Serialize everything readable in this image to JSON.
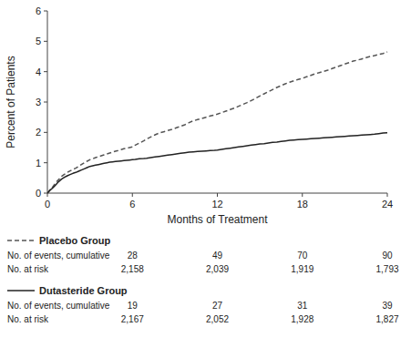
{
  "chart_data": {
    "type": "line",
    "xlabel": "Months of Treatment",
    "ylabel": "Percent of Patients",
    "xlim": [
      0,
      24
    ],
    "ylim": [
      0,
      6
    ],
    "xticks": [
      0,
      6,
      12,
      18,
      24
    ],
    "yticks": [
      0,
      1,
      2,
      3,
      4,
      5,
      6
    ],
    "x": [
      0,
      0.2,
      0.4,
      0.6,
      0.8,
      1.0,
      1.2,
      1.4,
      1.6,
      1.8,
      2.0,
      2.2,
      2.4,
      2.6,
      2.8,
      3.0,
      3.2,
      3.4,
      3.6,
      3.8,
      4.0,
      4.2,
      4.4,
      4.6,
      4.8,
      5.0,
      5.2,
      5.4,
      5.6,
      5.8,
      6.0,
      6.2,
      6.5,
      6.8,
      7.0,
      7.3,
      7.6,
      7.9,
      8.2,
      8.5,
      8.8,
      9.1,
      9.4,
      9.7,
      10.0,
      10.3,
      10.6,
      10.9,
      11.2,
      11.5,
      11.8,
      12.0,
      12.3,
      12.6,
      12.9,
      13.2,
      13.5,
      13.8,
      14.1,
      14.4,
      14.7,
      15.0,
      15.3,
      15.6,
      15.9,
      16.2,
      16.5,
      16.8,
      17.1,
      17.4,
      17.7,
      18.0,
      18.3,
      18.6,
      18.9,
      19.2,
      19.5,
      19.8,
      20.1,
      20.4,
      20.7,
      21.0,
      21.3,
      21.6,
      21.9,
      22.2,
      22.5,
      22.8,
      23.1,
      23.4,
      23.7,
      24.0
    ],
    "table_x": [
      6,
      12,
      18,
      24
    ],
    "table_row_labels": [
      "No. of events, cumulative",
      "No. at risk"
    ],
    "series": [
      {
        "name": "Placebo Group",
        "color": "#555555",
        "line_style": "dashed",
        "values": [
          0.0,
          0.12,
          0.22,
          0.35,
          0.45,
          0.55,
          0.62,
          0.68,
          0.73,
          0.78,
          0.82,
          0.88,
          0.94,
          1.0,
          1.05,
          1.1,
          1.13,
          1.17,
          1.2,
          1.23,
          1.26,
          1.29,
          1.32,
          1.35,
          1.38,
          1.4,
          1.43,
          1.46,
          1.48,
          1.5,
          1.52,
          1.58,
          1.65,
          1.72,
          1.78,
          1.85,
          1.92,
          1.98,
          2.02,
          2.06,
          2.1,
          2.15,
          2.2,
          2.25,
          2.32,
          2.38,
          2.42,
          2.46,
          2.5,
          2.54,
          2.57,
          2.6,
          2.65,
          2.7,
          2.75,
          2.8,
          2.86,
          2.92,
          2.98,
          3.05,
          3.12,
          3.2,
          3.27,
          3.34,
          3.41,
          3.48,
          3.54,
          3.6,
          3.65,
          3.7,
          3.74,
          3.78,
          3.83,
          3.88,
          3.93,
          3.97,
          4.01,
          4.05,
          4.1,
          4.15,
          4.2,
          4.25,
          4.3,
          4.35,
          4.38,
          4.42,
          4.46,
          4.5,
          4.53,
          4.57,
          4.6,
          4.65
        ],
        "events": [
          28,
          49,
          70,
          90
        ],
        "at_risk": [
          2158,
          2039,
          1919,
          1793
        ],
        "at_risk_labels": [
          "2,158",
          "2,039",
          "1,919",
          "1,793"
        ]
      },
      {
        "name": "Dutasteride Group",
        "color": "#222222",
        "line_style": "solid",
        "values": [
          0.0,
          0.1,
          0.18,
          0.28,
          0.38,
          0.46,
          0.52,
          0.57,
          0.61,
          0.65,
          0.68,
          0.72,
          0.76,
          0.8,
          0.84,
          0.88,
          0.9,
          0.92,
          0.94,
          0.96,
          0.98,
          1.0,
          1.02,
          1.03,
          1.04,
          1.05,
          1.06,
          1.07,
          1.08,
          1.09,
          1.1,
          1.11,
          1.13,
          1.14,
          1.15,
          1.17,
          1.19,
          1.21,
          1.23,
          1.25,
          1.27,
          1.29,
          1.31,
          1.33,
          1.35,
          1.36,
          1.37,
          1.38,
          1.39,
          1.4,
          1.41,
          1.42,
          1.44,
          1.46,
          1.48,
          1.5,
          1.52,
          1.54,
          1.56,
          1.58,
          1.6,
          1.62,
          1.63,
          1.65,
          1.67,
          1.68,
          1.7,
          1.72,
          1.74,
          1.75,
          1.76,
          1.77,
          1.78,
          1.79,
          1.8,
          1.81,
          1.82,
          1.83,
          1.84,
          1.85,
          1.86,
          1.87,
          1.88,
          1.89,
          1.9,
          1.91,
          1.92,
          1.93,
          1.94,
          1.96,
          1.98,
          1.99
        ],
        "events": [
          19,
          27,
          31,
          39
        ],
        "at_risk": [
          2167,
          2052,
          1928,
          1827
        ],
        "at_risk_labels": [
          "2,167",
          "2,052",
          "1,928",
          "1,827"
        ]
      }
    ]
  }
}
